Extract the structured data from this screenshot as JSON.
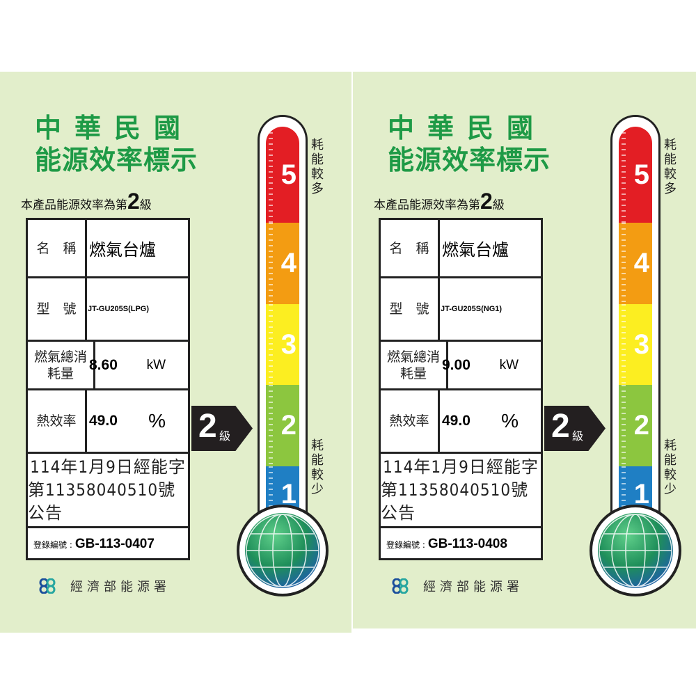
{
  "labels": [
    {
      "title_line1": "中華民國",
      "title_line2": "能源效率標示",
      "subtitle_prefix": "本產品能源效率為第",
      "grade": "2",
      "subtitle_suffix": "級",
      "name_label": "名　稱",
      "name_value": "燃氣台爐",
      "model_label": "型　號",
      "model_value": "JT-GU205S(LPG)",
      "gas_label": "燃氣總消耗量",
      "gas_value": "8.60",
      "gas_unit": "kW",
      "eff_label": "熱效率",
      "eff_value": "49.0",
      "eff_unit": "%",
      "announce_line1": "114年1月9日經能字",
      "announce_line2": "第11358040510號公告",
      "reg_label": "登錄編號 :",
      "reg_value": "GB-113-0407",
      "arrow_grade": "2",
      "arrow_suffix": "級",
      "scale": [
        "5",
        "4",
        "3",
        "2",
        "1"
      ],
      "more_energy": "耗能較多",
      "less_energy": "耗能較少",
      "agency": "經濟部能源署"
    },
    {
      "title_line1": "中華民國",
      "title_line2": "能源效率標示",
      "subtitle_prefix": "本產品能源效率為第",
      "grade": "2",
      "subtitle_suffix": "級",
      "name_label": "名　稱",
      "name_value": "燃氣台爐",
      "model_label": "型　號",
      "model_value": "JT-GU205S(NG1)",
      "gas_label": "燃氣總消耗量",
      "gas_value": "9.00",
      "gas_unit": "kW",
      "eff_label": "熱效率",
      "eff_value": "49.0",
      "eff_unit": "%",
      "announce_line1": "114年1月9日經能字",
      "announce_line2": "第11358040510號公告",
      "reg_label": "登錄編號 :",
      "reg_value": "GB-113-0408",
      "arrow_grade": "2",
      "arrow_suffix": "級",
      "scale": [
        "5",
        "4",
        "3",
        "2",
        "1"
      ],
      "more_energy": "耗能較多",
      "less_energy": "耗能較少",
      "agency": "經濟部能源署"
    }
  ],
  "colors": {
    "title": "#1e9a46",
    "background": "#e2eecb",
    "grade5": "#e31e24",
    "grade4": "#f39c12",
    "grade3": "#fcee21",
    "grade2": "#8cc63f",
    "grade1": "#1f7fc4"
  }
}
